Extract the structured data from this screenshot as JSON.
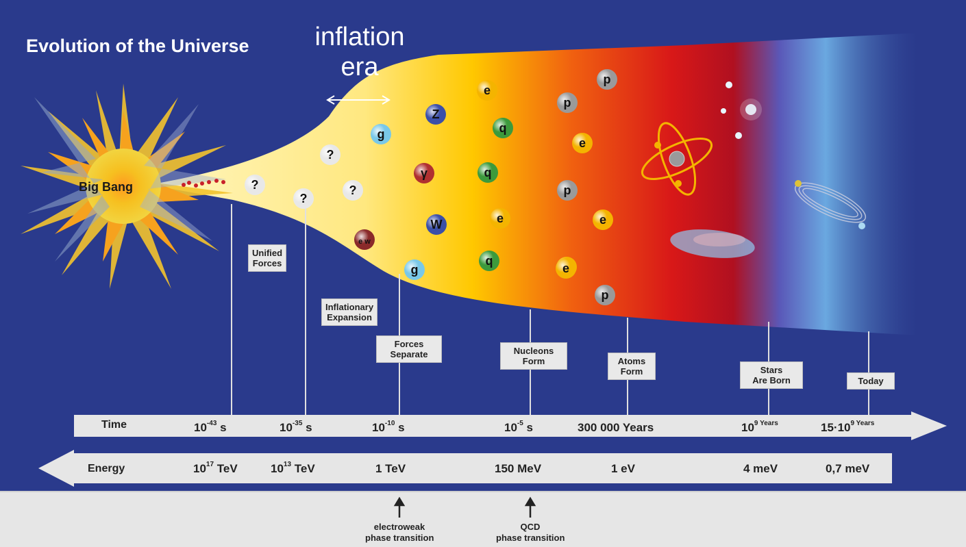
{
  "title": "Evolution of the Universe",
  "inflation_label": [
    "inflation",
    "era"
  ],
  "big_bang_label": "Big Bang",
  "milestones": [
    {
      "label": [
        "Unified",
        "Forces"
      ]
    },
    {
      "label": [
        "Inflationary",
        "Expansion"
      ]
    },
    {
      "label": [
        "Forces",
        "Separate"
      ]
    },
    {
      "label": [
        "Nucleons",
        "Form"
      ]
    },
    {
      "label": [
        "Atoms",
        "Form"
      ]
    },
    {
      "label": [
        "Stars",
        "Are Born"
      ]
    },
    {
      "label": [
        "Today"
      ]
    }
  ],
  "time_axis": {
    "name": "Time",
    "ticks": [
      {
        "base": "10",
        "exp": "-43",
        "unit": "s"
      },
      {
        "base": "10",
        "exp": "-35",
        "unit": "s"
      },
      {
        "base": "10",
        "exp": "-10",
        "unit": "s"
      },
      {
        "base": "10",
        "exp": "-5",
        "unit": "s"
      },
      {
        "base": "300 000",
        "exp": "",
        "unit": "Years"
      },
      {
        "base": "10",
        "exp": "9 Years",
        "unit": ""
      },
      {
        "base": "15·10",
        "exp": "9 Years",
        "unit": ""
      }
    ]
  },
  "energy_axis": {
    "name": "Energy",
    "ticks": [
      {
        "base": "10",
        "exp": "17",
        "unit": "TeV"
      },
      {
        "base": "10",
        "exp": "13",
        "unit": "TeV"
      },
      {
        "base": "1 TeV",
        "exp": "",
        "unit": ""
      },
      {
        "base": "150 MeV",
        "exp": "",
        "unit": ""
      },
      {
        "base": "1 eV",
        "exp": "",
        "unit": ""
      },
      {
        "base": "4 meV",
        "exp": "",
        "unit": ""
      },
      {
        "base": "0,7 meV",
        "exp": "",
        "unit": ""
      }
    ]
  },
  "phase_transitions": [
    {
      "label": [
        "electroweak",
        "phase transition"
      ]
    },
    {
      "label": [
        "QCD",
        "phase transition"
      ]
    }
  ],
  "particles": [
    {
      "symbol": "?",
      "color": "#e8e8e8"
    },
    {
      "symbol": "?",
      "color": "#e8e8e8"
    },
    {
      "symbol": "?",
      "color": "#e8e8e8"
    },
    {
      "symbol": "?",
      "color": "#e8e8e8"
    },
    {
      "symbol": "g",
      "color": "#79c8e8"
    },
    {
      "symbol": "g",
      "color": "#79c8e8"
    },
    {
      "symbol": "e w",
      "color": "#8a2a2a"
    },
    {
      "symbol": "Z",
      "color": "#3b4fa8"
    },
    {
      "symbol": "γ",
      "color": "#b03030"
    },
    {
      "symbol": "W",
      "color": "#3b4fa8"
    },
    {
      "symbol": "e",
      "color": "#f4b400"
    },
    {
      "symbol": "e",
      "color": "#f4b400"
    },
    {
      "symbol": "e",
      "color": "#f4b400"
    },
    {
      "symbol": "q",
      "color": "#3c9a3c"
    },
    {
      "symbol": "q",
      "color": "#3c9a3c"
    },
    {
      "symbol": "q",
      "color": "#3c9a3c"
    },
    {
      "symbol": "p",
      "color": "#9a9a9a"
    },
    {
      "symbol": "p",
      "color": "#9a9a9a"
    },
    {
      "symbol": "p",
      "color": "#9a9a9a"
    },
    {
      "symbol": "p",
      "color": "#9a9a9a"
    },
    {
      "symbol": "e",
      "color": "#f4b400"
    },
    {
      "symbol": "e",
      "color": "#f4b400"
    },
    {
      "symbol": "e",
      "color": "#f4b400"
    }
  ],
  "colors": {
    "background": "#2a3a8c",
    "bottom_band": "#e6e6e6",
    "axis_band": "#e6e6e6"
  }
}
